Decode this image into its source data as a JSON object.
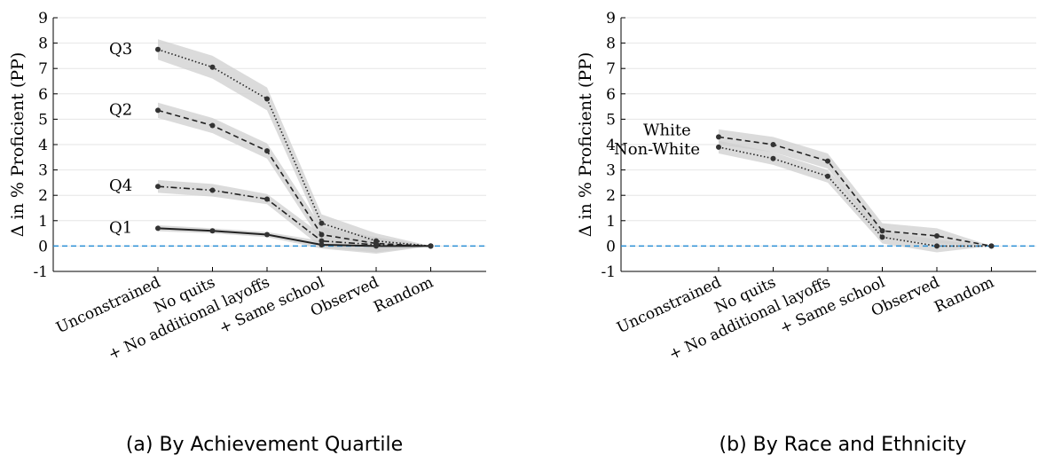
{
  "chart_data": [
    {
      "type": "line",
      "caption": "(a) By Achievement Quartile",
      "ylabel": "Δ in % Proficient (PP)",
      "ylim": [
        -1,
        9
      ],
      "yticks": [
        "-1",
        "0",
        "1",
        "2",
        "3",
        "4",
        "5",
        "6",
        "7",
        "8",
        "9"
      ],
      "categories": [
        "Unconstrained",
        "No quits",
        "+ No additional layoffs",
        "+ Same school",
        "Observed",
        "Random"
      ],
      "grid": true,
      "reference_line": 0,
      "series": [
        {
          "name": "Q3",
          "style": "dotted",
          "values": [
            7.75,
            7.05,
            5.8,
            0.9,
            0.2,
            0
          ],
          "band": [
            0.4,
            0.45,
            0.45,
            0.35,
            0.3,
            0
          ]
        },
        {
          "name": "Q2",
          "style": "dashed",
          "values": [
            5.35,
            4.75,
            3.75,
            0.45,
            0.1,
            0
          ],
          "band": [
            0.3,
            0.3,
            0.3,
            0.3,
            0.25,
            0
          ]
        },
        {
          "name": "Q4",
          "style": "dashdot",
          "values": [
            2.35,
            2.2,
            1.85,
            0.2,
            0.05,
            0
          ],
          "band": [
            0.25,
            0.25,
            0.2,
            0.25,
            0.3,
            0
          ]
        },
        {
          "name": "Q1",
          "style": "solid",
          "values": [
            0.7,
            0.6,
            0.45,
            0.05,
            0.0,
            0
          ],
          "band": [
            0.12,
            0.1,
            0.1,
            0.15,
            0.3,
            0
          ]
        }
      ]
    },
    {
      "type": "line",
      "caption": "(b) By Race and Ethnicity",
      "ylabel": "Δ in % Proficient (PP)",
      "ylim": [
        -1,
        9
      ],
      "yticks": [
        "-1",
        "0",
        "1",
        "2",
        "3",
        "4",
        "5",
        "6",
        "7",
        "8",
        "9"
      ],
      "categories": [
        "Unconstrained",
        "No quits",
        "+ No additional layoffs",
        "+ Same school",
        "Observed",
        "Random"
      ],
      "grid": true,
      "reference_line": 0,
      "series": [
        {
          "name": "White",
          "style": "dashed",
          "values": [
            4.3,
            4.0,
            3.35,
            0.6,
            0.4,
            0
          ],
          "band": [
            0.3,
            0.3,
            0.3,
            0.3,
            0.3,
            0
          ]
        },
        {
          "name": "Non-White",
          "style": "dotted",
          "values": [
            3.9,
            3.45,
            2.75,
            0.35,
            0.0,
            0
          ],
          "band": [
            0.25,
            0.25,
            0.25,
            0.25,
            0.25,
            0
          ]
        }
      ]
    }
  ]
}
